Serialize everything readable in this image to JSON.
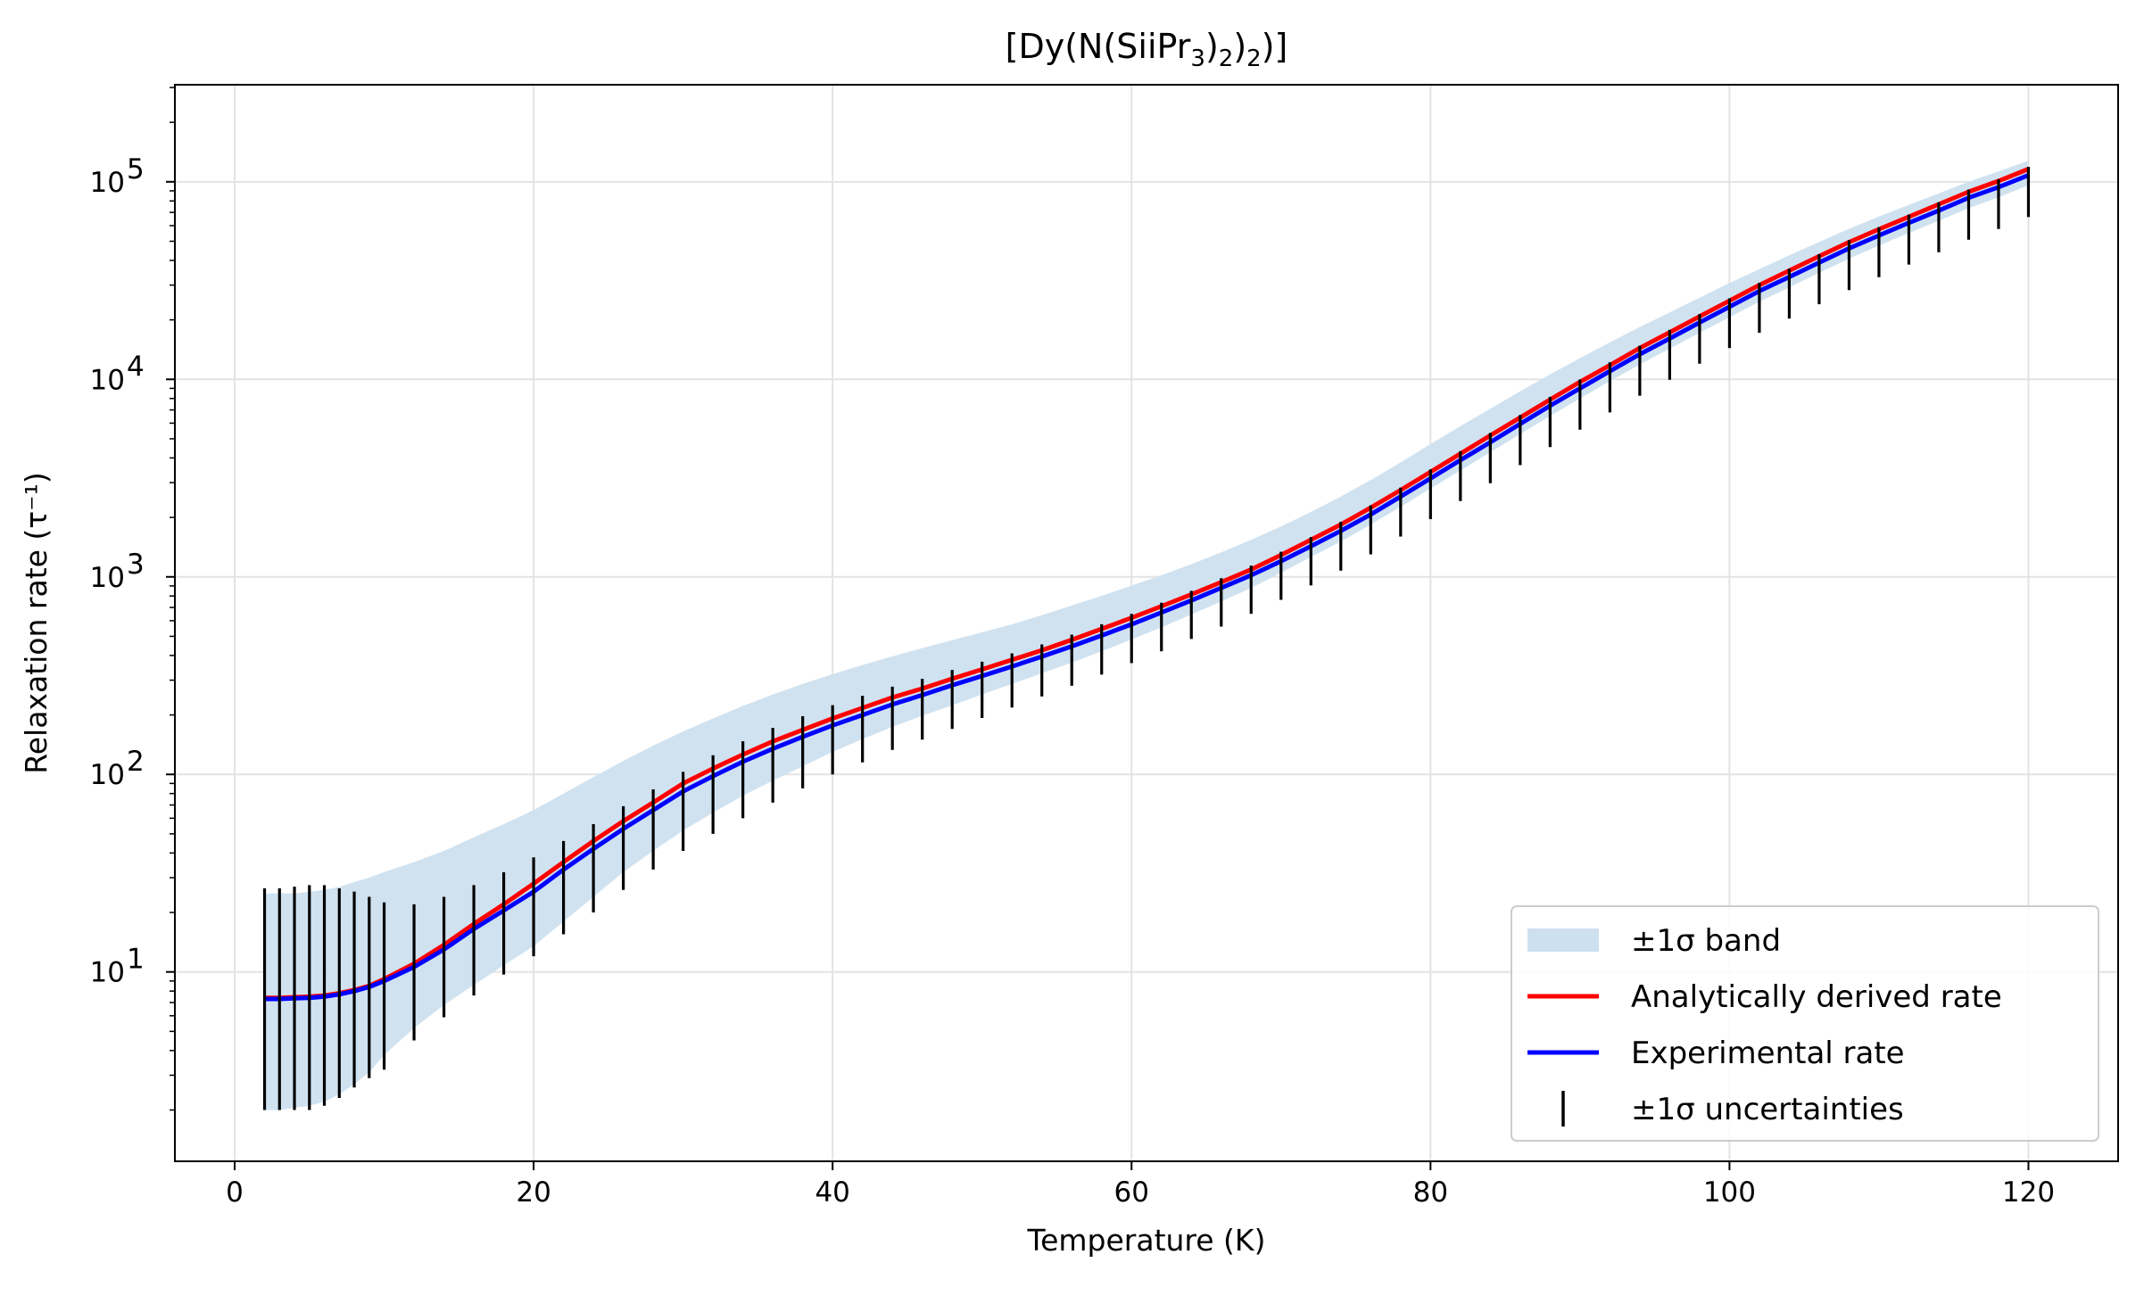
{
  "chart_data": {
    "type": "line",
    "title": "[Dy(N(SiiPr3)2)2)]",
    "xlabel": "Temperature (K)",
    "ylabel": "Relaxation rate (τ⁻¹)",
    "xlim": [
      -4,
      126
    ],
    "ylim": [
      1.1,
      310000
    ],
    "yscale": "log",
    "grid": true,
    "legend_position": "lower-right",
    "x_ticks": [
      0,
      20,
      40,
      60,
      80,
      100,
      120
    ],
    "y_ticks": [
      10,
      100,
      1000,
      10000,
      100000
    ],
    "y_tick_labels": [
      {
        "base": "10",
        "exp": "1"
      },
      {
        "base": "10",
        "exp": "2"
      },
      {
        "base": "10",
        "exp": "3"
      },
      {
        "base": "10",
        "exp": "4"
      },
      {
        "base": "10",
        "exp": "5"
      }
    ],
    "x": [
      2,
      3,
      4,
      5,
      6,
      7,
      8,
      9,
      10,
      12,
      14,
      16,
      18,
      20,
      22,
      24,
      26,
      28,
      30,
      32,
      34,
      36,
      38,
      40,
      42,
      44,
      46,
      48,
      50,
      52,
      54,
      56,
      58,
      60,
      62,
      64,
      66,
      68,
      70,
      72,
      74,
      76,
      78,
      80,
      82,
      84,
      86,
      88,
      90,
      92,
      94,
      96,
      98,
      100,
      102,
      104,
      106,
      108,
      110,
      112,
      114,
      116,
      118,
      120
    ],
    "series": [
      {
        "name": "Analytically derived rate",
        "color": "#ff0000",
        "values": [
          7.4,
          7.4,
          7.45,
          7.5,
          7.6,
          7.8,
          8.1,
          8.5,
          9.0,
          10.6,
          12.8,
          15.7,
          19.5,
          24.5,
          31,
          39,
          49,
          60,
          73,
          88,
          104,
          122,
          142,
          165,
          190,
          217,
          248,
          282,
          320,
          363,
          412,
          470,
          535,
          613,
          705,
          815,
          945,
          1100,
          1290,
          1520,
          1800,
          2130,
          2530,
          3000,
          3550,
          4200,
          4950,
          5800,
          6800,
          7950,
          9250,
          10700,
          12300,
          14100,
          16000,
          18100,
          20300,
          22700,
          25200,
          27800,
          30500,
          33300,
          36100,
          39000
        ],
        "display_values": [
          7.4,
          7.4,
          7.45,
          7.5,
          7.6,
          7.8,
          8.1,
          8.5,
          9.2,
          11,
          13.7,
          17.5,
          22,
          28,
          36,
          46,
          58,
          72,
          90,
          107,
          126,
          147,
          168,
          192,
          217,
          245,
          272,
          305,
          340,
          380,
          425,
          480,
          545,
          620,
          710,
          815,
          940,
          1090,
          1290,
          1540,
          1840,
          2240,
          2750,
          3400,
          4200,
          5200,
          6400,
          7900,
          9700,
          11800,
          14400,
          17300,
          20800,
          25000,
          30000,
          35500,
          42000,
          49500,
          57500,
          66500,
          77000,
          89000,
          101000,
          116000
        ]
      },
      {
        "name": "Experimental rate",
        "color": "#0000ff",
        "values": [
          7.3,
          7.3,
          7.35,
          7.4,
          7.5,
          7.7,
          8.0,
          8.4,
          8.9,
          10.3,
          12.4,
          15.1,
          18.7,
          23.3,
          29,
          36.5,
          45.5,
          56,
          68,
          81,
          96,
          113,
          131,
          152,
          175,
          200,
          228,
          259,
          294,
          333,
          378,
          430,
          490,
          560,
          645,
          745,
          865,
          1010,
          1180,
          1390,
          1640,
          1950,
          2310,
          2740,
          3240,
          3830,
          4510,
          5290,
          6200,
          7240,
          8420,
          9740,
          11200,
          12800,
          14600,
          16500,
          18500,
          20700,
          23000,
          25300,
          27800,
          30300,
          32900,
          35500
        ],
        "display_values": [
          7.3,
          7.3,
          7.35,
          7.4,
          7.5,
          7.7,
          8.0,
          8.4,
          9.0,
          10.6,
          13,
          16.5,
          20.5,
          25.5,
          33,
          42,
          53,
          66,
          82,
          98,
          116,
          135,
          155,
          177,
          200,
          226,
          252,
          283,
          315,
          352,
          395,
          445,
          505,
          575,
          660,
          760,
          880,
          1020,
          1200,
          1430,
          1710,
          2070,
          2550,
          3150,
          3900,
          4800,
          5950,
          7350,
          9000,
          11000,
          13400,
          16100,
          19400,
          23300,
          28000,
          33000,
          39000,
          46000,
          53500,
          62000,
          71500,
          83000,
          94000,
          108000
        ]
      }
    ],
    "band": {
      "name": "±1σ band",
      "color": "#cde0ef",
      "lower": [
        2.0,
        2.0,
        2.05,
        2.1,
        2.2,
        2.4,
        2.7,
        3.1,
        3.8,
        5.2,
        6.8,
        8.6,
        10.8,
        13.5,
        17.5,
        23,
        30,
        38,
        48,
        59,
        71,
        85,
        100,
        118,
        137,
        158,
        181,
        206,
        235,
        267,
        304,
        347,
        398,
        459,
        531,
        617,
        720,
        842,
        990,
        1170,
        1390,
        1650,
        1960,
        2330,
        2760,
        3260,
        3850,
        4520,
        5290,
        6170,
        7180,
        8300,
        9550,
        10900,
        12400,
        14000,
        15700,
        17600,
        19500,
        21500,
        23600,
        25800,
        28000,
        30300
      ],
      "upper": [
        25,
        25,
        25,
        25.5,
        26,
        27,
        28.5,
        30,
        32,
        36,
        41,
        48,
        56,
        66,
        78,
        93,
        110,
        130,
        152,
        176,
        202,
        230,
        261,
        295,
        332,
        372,
        416,
        464,
        517,
        575,
        641,
        716,
        802,
        903,
        1020,
        1160,
        1330,
        1530,
        1770,
        2060,
        2410,
        2830,
        3330,
        3920,
        4610,
        5410,
        6330,
        7380,
        8580,
        9950,
        11500,
        13200,
        15100,
        17200,
        19400,
        21800,
        24300,
        27000,
        29800,
        32700,
        35700,
        38800,
        42000,
        45300
      ],
      "display_lower": [
        2.0,
        2.0,
        2.05,
        2.1,
        2.2,
        2.4,
        2.7,
        3.1,
        3.8,
        5.2,
        6.8,
        8.6,
        10.8,
        13.5,
        18,
        24,
        32,
        41,
        52,
        64,
        78,
        93,
        110,
        130,
        151,
        174,
        198,
        224,
        254,
        287,
        325,
        368,
        420,
        482,
        555,
        645,
        750,
        880,
        1050,
        1260,
        1510,
        1840,
        2260,
        2800,
        3450,
        4270,
        5280,
        6520,
        8000,
        9800,
        11900,
        14300,
        17200,
        20600,
        24700,
        29200,
        34600,
        40800,
        47500,
        55000,
        63500,
        73500,
        83500,
        96000
      ],
      "display_upper": [
        25,
        25,
        25,
        25.5,
        26,
        27,
        28.5,
        30,
        32,
        36,
        41,
        48,
        56,
        66,
        80,
        97,
        117,
        140,
        165,
        192,
        222,
        254,
        287,
        322,
        358,
        396,
        436,
        478,
        524,
        575,
        640,
        716,
        802,
        903,
        1020,
        1160,
        1330,
        1540,
        1800,
        2130,
        2550,
        3090,
        3800,
        4700,
        5800,
        7100,
        8700,
        10600,
        12800,
        15400,
        18400,
        21800,
        25900,
        30700,
        36200,
        42400,
        49600,
        57800,
        66700,
        76500,
        87500,
        100000,
        113000,
        128000
      ]
    },
    "error_bars": {
      "name": "±1σ uncertainties",
      "color": "#000000",
      "x": [
        2,
        3,
        4,
        5,
        6,
        7,
        8,
        9,
        10,
        12,
        14,
        16,
        18,
        20,
        22,
        24,
        26,
        28,
        30,
        32,
        34,
        36,
        38,
        40,
        42,
        44,
        46,
        48,
        50,
        52,
        54,
        56,
        58,
        60,
        62,
        64,
        66,
        68,
        70,
        72,
        74,
        76,
        78,
        80,
        82,
        84,
        86,
        88,
        90,
        92,
        94,
        96,
        98,
        100,
        102,
        104,
        106,
        108,
        110,
        112,
        114,
        116,
        118,
        120
      ],
      "lower": [
        2.0,
        2.0,
        2.0,
        2.0,
        2.1,
        2.3,
        2.6,
        2.9,
        3.2,
        4.5,
        5.9,
        7.6,
        9.7,
        12,
        15.5,
        20,
        26,
        33,
        41,
        50,
        60,
        72,
        85,
        100,
        115,
        133,
        150,
        170,
        193,
        218,
        248,
        281,
        320,
        366,
        420,
        485,
        560,
        650,
        765,
        905,
        1075,
        1300,
        1600,
        1960,
        2420,
        2980,
        3680,
        4540,
        5560,
        6800,
        8260,
        9950,
        12000,
        14400,
        17200,
        20300,
        24000,
        28300,
        32900,
        38100,
        44000,
        50900,
        57700,
        66300
      ],
      "upper": [
        26.5,
        26.5,
        27,
        27.5,
        27.5,
        26.5,
        25.5,
        24,
        22.5,
        22,
        24,
        27.5,
        32,
        38,
        46,
        56,
        69,
        84,
        103,
        125,
        147,
        172,
        197,
        224,
        250,
        278,
        305,
        338,
        372,
        410,
        455,
        510,
        576,
        650,
        740,
        850,
        985,
        1140,
        1340,
        1590,
        1900,
        2300,
        2830,
        3500,
        4330,
        5350,
        6600,
        8150,
        9980,
        12200,
        14800,
        17800,
        21400,
        25700,
        30800,
        36300,
        43000,
        50600,
        58900,
        68200,
        78700,
        91300,
        103000,
        119000
      ]
    }
  },
  "legend": [
    {
      "label": "±1σ band",
      "kind": "patch",
      "color": "#cde0ef"
    },
    {
      "label": "Analytically derived rate",
      "kind": "line",
      "color": "#ff0000"
    },
    {
      "label": "Experimental rate",
      "kind": "line",
      "color": "#0000ff"
    },
    {
      "label": "±1σ uncertainties",
      "kind": "errorbar",
      "color": "#000000"
    }
  ]
}
